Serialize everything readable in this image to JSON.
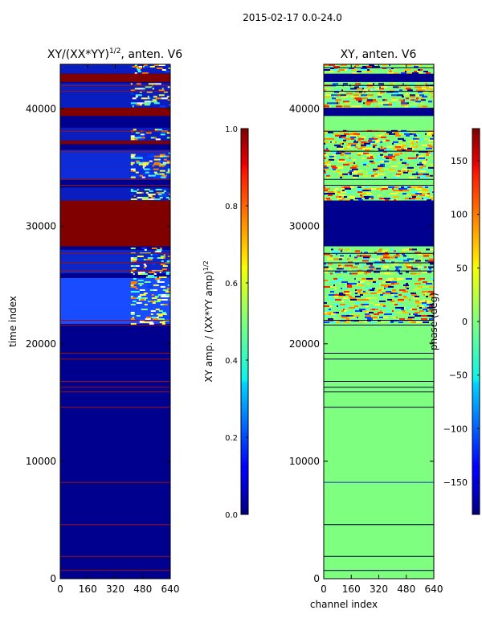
{
  "figure": {
    "suptitle": "2015-02-17 0.0-24.0"
  },
  "chart_data": [
    {
      "type": "heatmap",
      "title_main": "XY/(XX*YY)",
      "title_sup": "1/2",
      "title_tail": ", anten. V6",
      "xlabel": "",
      "ylabel": "time index",
      "xlim": [
        0,
        640
      ],
      "ylim": [
        0,
        43800
      ],
      "xticks": [
        "0",
        "160",
        "320",
        "480",
        "640"
      ],
      "yticks": [
        "0",
        "10000",
        "20000",
        "30000",
        "40000"
      ],
      "colorbar": {
        "label_main": "XY amp. / (XX*YY amp)",
        "label_sup": "1/2",
        "range": [
          0.0,
          1.0
        ],
        "ticks": [
          "0.0",
          "0.2",
          "0.4",
          "0.6",
          "0.8",
          "1.0"
        ],
        "colormap": "jet"
      },
      "background_color": "#00008f",
      "solid_bands": [
        {
          "y": [
            28300,
            32200
          ],
          "color": "#800000"
        },
        {
          "y": [
            39400,
            40100
          ],
          "color": "#800000"
        },
        {
          "y": [
            42300,
            43000
          ],
          "color": "#800000"
        },
        {
          "y": [
            37000,
            37300
          ],
          "color": "#800000"
        }
      ],
      "lines": [
        {
          "y": 700,
          "color": "#a01010"
        },
        {
          "y": 1900,
          "color": "#a01010"
        },
        {
          "y": 4600,
          "color": "#a01010"
        },
        {
          "y": 8200,
          "color": "#a01010"
        },
        {
          "y": 14600,
          "color": "#a01010"
        },
        {
          "y": 15900,
          "color": "#a01010"
        },
        {
          "y": 16300,
          "color": "#a01010"
        },
        {
          "y": 16800,
          "color": "#a01010"
        },
        {
          "y": 18700,
          "color": "#a01010"
        },
        {
          "y": 19200,
          "color": "#a01010"
        },
        {
          "y": 21600,
          "color": "#a01010"
        },
        {
          "y": 22000,
          "color": "#a01010"
        },
        {
          "y": 26200,
          "color": "#a01010"
        },
        {
          "y": 26900,
          "color": "#a01010"
        },
        {
          "y": 27700,
          "color": "#a01010"
        },
        {
          "y": 33500,
          "color": "#a01010"
        },
        {
          "y": 34000,
          "color": "#a01010"
        },
        {
          "y": 36400,
          "color": "#a01010"
        },
        {
          "y": 38100,
          "color": "#a01010"
        },
        {
          "y": 41500,
          "color": "#a01010"
        },
        {
          "y": 42000,
          "color": "#a01010"
        }
      ],
      "blue_bands": [
        {
          "y": [
            21700,
            25600
          ],
          "color": "#1a4cff"
        },
        {
          "y": [
            26000,
            28000
          ],
          "color": "#0d26c8"
        },
        {
          "y": [
            32200,
            33300
          ],
          "color": "#0a1ec0"
        },
        {
          "y": [
            34000,
            36500
          ],
          "color": "#0d2bd6"
        },
        {
          "y": [
            37300,
            38400
          ],
          "color": "#0a1ec0"
        },
        {
          "y": [
            40100,
            42200
          ],
          "color": "#0a1ec0"
        },
        {
          "y": [
            43000,
            43800
          ],
          "color": "#0a1ec0"
        }
      ],
      "speckle_regions": [
        {
          "x": [
            410,
            640
          ],
          "y": [
            21700,
            28200
          ]
        },
        {
          "x": [
            410,
            640
          ],
          "y": [
            32300,
            33200
          ]
        },
        {
          "x": [
            410,
            640
          ],
          "y": [
            34200,
            36300
          ]
        },
        {
          "x": [
            410,
            640
          ],
          "y": [
            37400,
            38300
          ]
        },
        {
          "x": [
            410,
            640
          ],
          "y": [
            40200,
            42200
          ]
        },
        {
          "x": [
            410,
            640
          ],
          "y": [
            43000,
            43800
          ]
        }
      ],
      "speckle_palette": [
        "#ffff40",
        "#ffffff",
        "#40ffff",
        "#80ff80",
        "#ff8000",
        "#0040ff"
      ],
      "speckle_density": 0.38
    },
    {
      "type": "heatmap",
      "title_main": "XY, anten. V6",
      "title_sup": "",
      "title_tail": "",
      "xlabel": "channel index",
      "ylabel": "",
      "xlim": [
        0,
        640
      ],
      "ylim": [
        0,
        43800
      ],
      "xticks": [
        "0",
        "160",
        "320",
        "480",
        "640"
      ],
      "yticks": [
        "0",
        "10000",
        "20000",
        "30000",
        "40000"
      ],
      "colorbar": {
        "label_main": "phase (deg)",
        "label_sup": "",
        "range": [
          -180,
          180
        ],
        "ticks": [
          "−150",
          "−100",
          "−50",
          "0",
          "50",
          "100",
          "150"
        ],
        "tick_values": [
          -150,
          -100,
          -50,
          0,
          50,
          100,
          150
        ],
        "colormap": "jet"
      },
      "background_color": "#7fff7f",
      "solid_bands": [
        {
          "y": [
            28300,
            32200
          ],
          "color": "#00008f"
        },
        {
          "y": [
            39400,
            40100
          ],
          "color": "#00008f"
        },
        {
          "y": [
            42300,
            43000
          ],
          "color": "#00008f"
        }
      ],
      "lines": [
        {
          "y": 700,
          "color": "#000040"
        },
        {
          "y": 1900,
          "color": "#000040"
        },
        {
          "y": 4600,
          "color": "#000040"
        },
        {
          "y": 8200,
          "color": "#2030c0"
        },
        {
          "y": 14600,
          "color": "#000040"
        },
        {
          "y": 15900,
          "color": "#000040"
        },
        {
          "y": 16300,
          "color": "#000040"
        },
        {
          "y": 16800,
          "color": "#000040"
        },
        {
          "y": 18700,
          "color": "#000040"
        },
        {
          "y": 19200,
          "color": "#000040"
        },
        {
          "y": 21600,
          "color": "#000040"
        },
        {
          "y": 22000,
          "color": "#000040"
        },
        {
          "y": 26200,
          "color": "#000040"
        },
        {
          "y": 26900,
          "color": "#000040"
        },
        {
          "y": 27700,
          "color": "#000040"
        },
        {
          "y": 33500,
          "color": "#000040"
        },
        {
          "y": 34000,
          "color": "#000040"
        },
        {
          "y": 36400,
          "color": "#000040"
        },
        {
          "y": 38100,
          "color": "#000040"
        },
        {
          "y": 41500,
          "color": "#000040"
        },
        {
          "y": 42000,
          "color": "#000040"
        },
        {
          "y": 43500,
          "color": "#000040"
        }
      ],
      "blue_bands": [],
      "speckle_regions": [
        {
          "x": [
            0,
            640
          ],
          "y": [
            21800,
            25600
          ]
        },
        {
          "x": [
            0,
            640
          ],
          "y": [
            26000,
            28100
          ]
        },
        {
          "x": [
            0,
            640
          ],
          "y": [
            32300,
            33400
          ]
        },
        {
          "x": [
            0,
            640
          ],
          "y": [
            34100,
            38200
          ]
        },
        {
          "x": [
            0,
            640
          ],
          "y": [
            40200,
            42200
          ]
        },
        {
          "x": [
            0,
            640
          ],
          "y": [
            43000,
            43800
          ]
        }
      ],
      "speckle_palette": [
        "#ffc000",
        "#ff8000",
        "#ffff40",
        "#c0ff40",
        "#40ffff",
        "#0040ff",
        "#ff2000",
        "#00008f"
      ],
      "speckle_density": 0.45
    }
  ]
}
